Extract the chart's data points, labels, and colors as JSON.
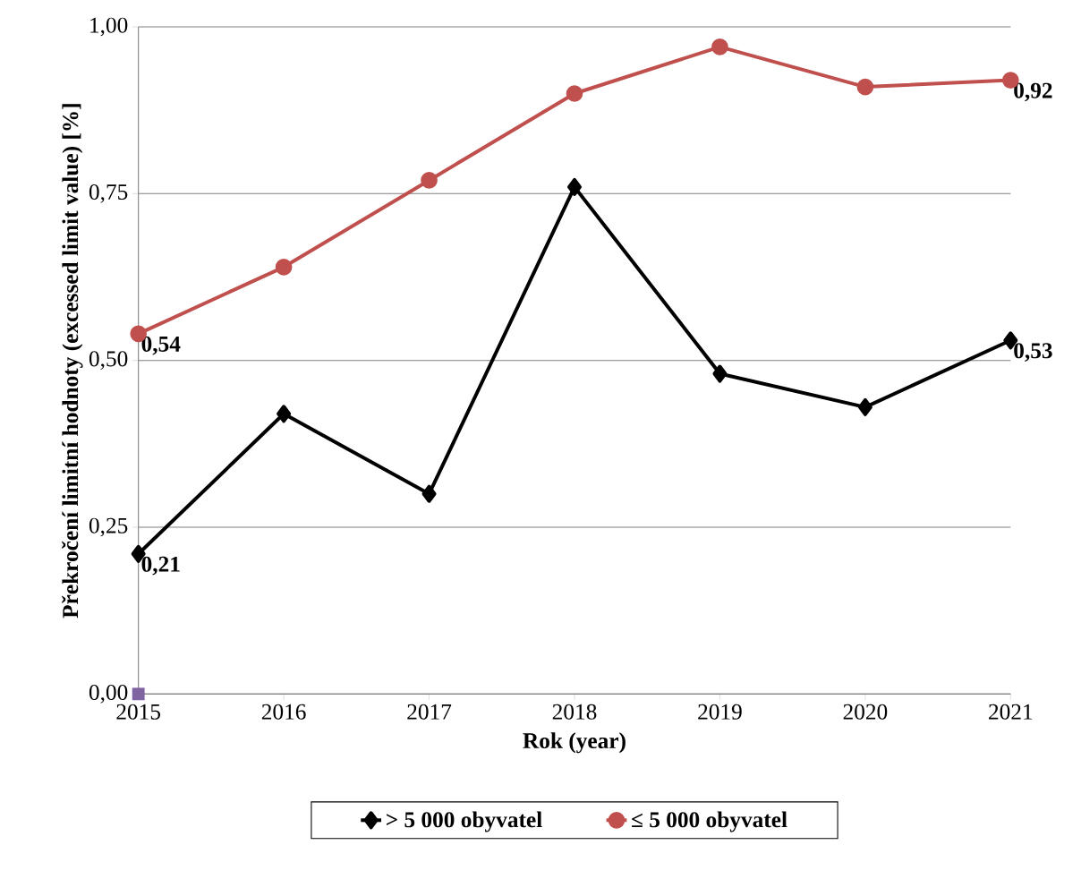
{
  "chart_data": {
    "type": "line",
    "xlabel": "Rok (year)",
    "ylabel": "Překročení limitní hodnoty (excessed limit value) [%]",
    "categories": [
      "2015",
      "2016",
      "2017",
      "2018",
      "2019",
      "2020",
      "2021"
    ],
    "series": [
      {
        "name": "> 5 000 obyvatel",
        "color": "#000000",
        "marker": "diamond",
        "values": [
          0.21,
          0.42,
          0.3,
          0.76,
          0.48,
          0.43,
          0.53
        ],
        "value_labels": [
          "0,21",
          null,
          null,
          null,
          null,
          null,
          "0,53"
        ]
      },
      {
        "name": "≤  5 000 obyvatel",
        "color": "#c0504d",
        "marker": "circle",
        "values": [
          0.54,
          0.64,
          0.77,
          0.9,
          0.97,
          0.91,
          0.92
        ],
        "value_labels": [
          "0,54",
          null,
          null,
          null,
          null,
          null,
          "0,92"
        ]
      },
      {
        "type": "scatter",
        "color": "#8064a2",
        "marker": "square",
        "values": [
          0,
          null,
          null,
          null,
          null,
          null,
          null
        ]
      }
    ],
    "ylim": [
      0,
      1
    ],
    "yticks": [
      {
        "value": 0,
        "label": "0,00"
      },
      {
        "value": 0.25,
        "label": "0,25"
      },
      {
        "value": 0.5,
        "label": "0,50"
      },
      {
        "value": 0.75,
        "label": "0,75"
      },
      {
        "value": 1,
        "label": "1,00"
      }
    ],
    "grid": "y",
    "legend": "bottom",
    "line_style": "solid"
  }
}
